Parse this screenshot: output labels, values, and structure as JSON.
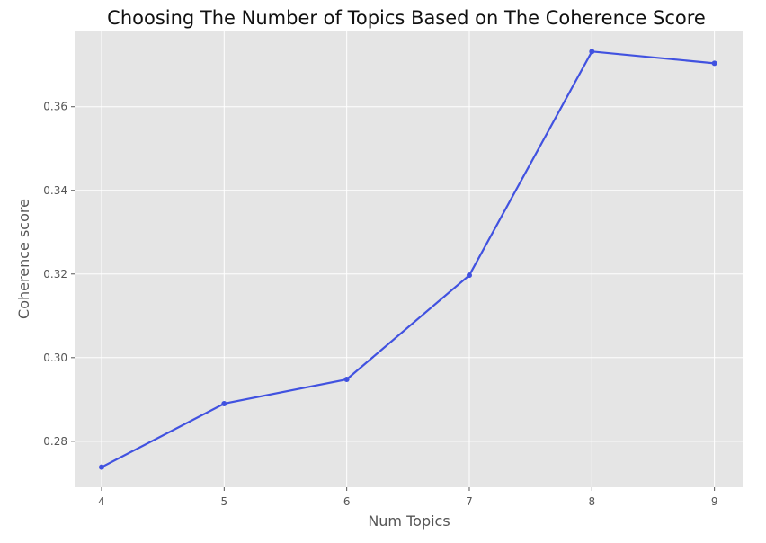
{
  "chart_data": {
    "type": "line",
    "title": "Choosing The Number of Topics Based on The Coherence Score",
    "xlabel": "Num Topics",
    "ylabel": "Coherence score",
    "x": [
      4,
      5,
      6,
      7,
      8,
      9
    ],
    "series": [
      {
        "values": [
          0.2738,
          0.289,
          0.2948,
          0.3197,
          0.3732,
          0.3704
        ]
      }
    ],
    "xlim": [
      3.78,
      9.23
    ],
    "ylim": [
      0.269,
      0.378
    ],
    "xticks": [
      4,
      5,
      6,
      7,
      8,
      9
    ],
    "xtick_labels": [
      "4",
      "5",
      "6",
      "7",
      "8",
      "9"
    ],
    "yticks": [
      0.28,
      0.3,
      0.32,
      0.34,
      0.36
    ],
    "ytick_labels": [
      "0.28",
      "0.30",
      "0.32",
      "0.34",
      "0.36"
    ],
    "grid": true,
    "legend": "none",
    "colors": {
      "series": "#4152e0",
      "plot_background": "#e5e5e5",
      "grid": "#ffffff"
    }
  }
}
